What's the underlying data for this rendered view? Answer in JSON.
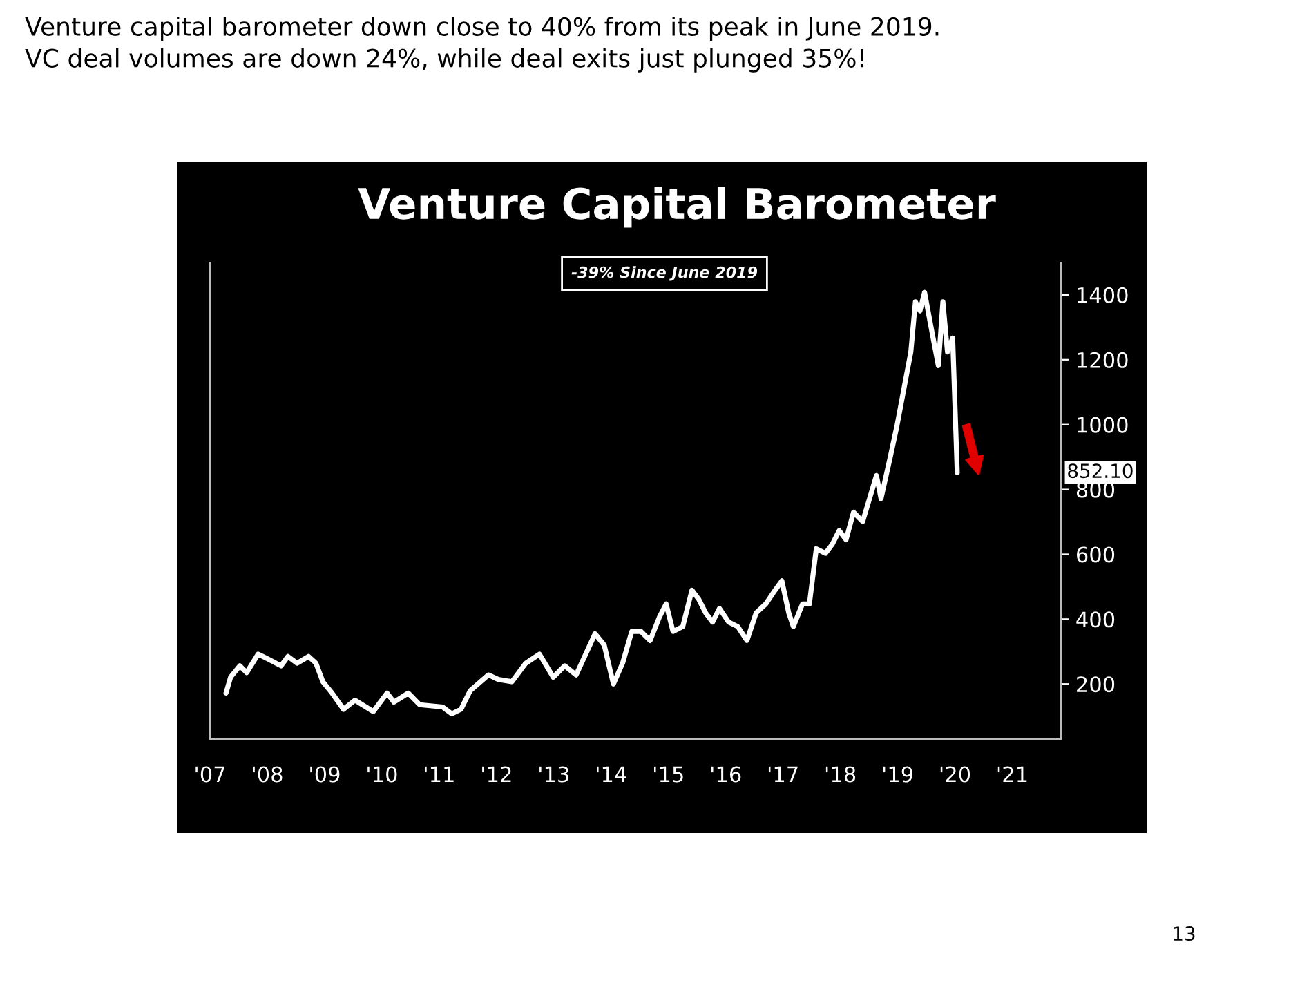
{
  "chart_data": {
    "type": "line",
    "title": "Venture Capital Barometer",
    "annotations": [
      "Venture capital barometer down close to 40% from its peak in June 2019.\nVC deal volumes are down 24%, while deal exits just plunged 35%!",
      "-39% Since June 2019",
      "852.10",
      "13"
    ],
    "x": [
      2007.28,
      2007.36,
      2007.52,
      2007.64,
      2007.84,
      2008.0,
      2008.24,
      2008.36,
      2008.52,
      2008.72,
      2008.85,
      2008.97,
      2009.13,
      2009.33,
      2009.53,
      2009.85,
      2010.09,
      2010.21,
      2010.46,
      2010.66,
      2011.06,
      2011.22,
      2011.38,
      2011.54,
      2011.86,
      2012.03,
      2012.27,
      2012.51,
      2012.75,
      2012.99,
      2013.19,
      2013.39,
      2013.72,
      2013.88,
      2014.04,
      2014.2,
      2014.36,
      2014.52,
      2014.68,
      2014.84,
      2014.96,
      2015.08,
      2015.25,
      2015.41,
      2015.53,
      2015.65,
      2015.77,
      2015.89,
      2016.05,
      2016.21,
      2016.37,
      2016.53,
      2016.7,
      2016.86,
      2016.98,
      2017.1,
      2017.18,
      2017.34,
      2017.46,
      2017.58,
      2017.74,
      2017.86,
      2017.98,
      2018.1,
      2018.23,
      2018.39,
      2018.51,
      2018.63,
      2018.71,
      2018.87,
      2018.99,
      2019.11,
      2019.23,
      2019.31,
      2019.39,
      2019.47,
      2019.59,
      2019.71,
      2019.79,
      2019.87,
      2019.96,
      2020.04
    ],
    "series": [
      {
        "color": "#ffffff",
        "values": [
          172,
          221,
          256,
          235,
          292,
          278,
          256,
          285,
          264,
          285,
          264,
          207,
          172,
          122,
          150,
          115,
          172,
          144,
          172,
          136,
          129,
          108,
          122,
          179,
          228,
          214,
          207,
          264,
          292,
          221,
          256,
          228,
          355,
          320,
          200,
          264,
          362,
          362,
          334,
          405,
          447,
          362,
          377,
          489,
          461,
          419,
          391,
          433,
          391,
          377,
          334,
          419,
          447,
          489,
          518,
          419,
          377,
          447,
          447,
          617,
          603,
          631,
          673,
          645,
          730,
          701,
          772,
          843,
          772,
          899,
          998,
          1111,
          1224,
          1379,
          1351,
          1408,
          1294,
          1182,
          1379,
          1224,
          1267,
          852.1
        ]
      }
    ],
    "xlim": [
      2007.0,
      2021.85
    ],
    "xticks": [
      {
        "value": 2007,
        "label": "'07"
      },
      {
        "value": 2008,
        "label": "'08"
      },
      {
        "value": 2009,
        "label": "'09"
      },
      {
        "value": 2010,
        "label": "'10"
      },
      {
        "value": 2011,
        "label": "'11"
      },
      {
        "value": 2012,
        "label": "'12"
      },
      {
        "value": 2013,
        "label": "'13"
      },
      {
        "value": 2014,
        "label": "'14"
      },
      {
        "value": 2015,
        "label": "'15"
      },
      {
        "value": 2016,
        "label": "'16"
      },
      {
        "value": 2017,
        "label": "'17"
      },
      {
        "value": 2018,
        "label": "'18"
      },
      {
        "value": 2019,
        "label": "'19"
      },
      {
        "value": 2020,
        "label": "'20"
      },
      {
        "value": 2021,
        "label": "'21"
      }
    ],
    "ylim": [
      30,
      1500
    ],
    "yticks": [
      200,
      400,
      600,
      800,
      1000,
      1200,
      1400
    ],
    "grid": false,
    "legend": false,
    "marker": "none",
    "line_style": "solid"
  }
}
